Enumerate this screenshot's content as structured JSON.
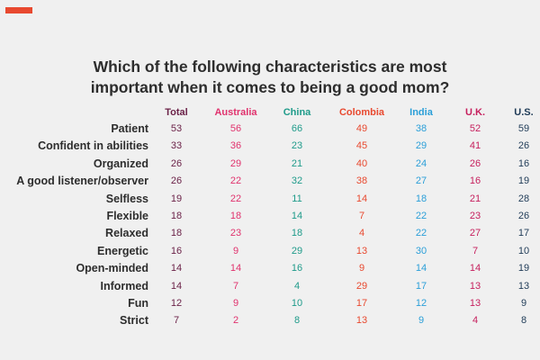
{
  "title_lines": [
    "Which of the following characteristics are most",
    "important when it comes to being a good mom?"
  ],
  "colors": {
    "accent": "#e8492f",
    "columns": [
      "#6b2248",
      "#e0326d",
      "#1f9b8a",
      "#e8492f",
      "#2b9fd8",
      "#c61f5d",
      "#1f3b57"
    ]
  },
  "chart_data": {
    "type": "table",
    "columns": [
      "Total",
      "Australia",
      "China",
      "Colombia",
      "India",
      "U.K.",
      "U.S."
    ],
    "rows": [
      {
        "label": "Patient",
        "values": [
          53,
          56,
          66,
          49,
          38,
          52,
          59
        ]
      },
      {
        "label": "Confident in abilities",
        "values": [
          33,
          36,
          23,
          45,
          29,
          41,
          26
        ]
      },
      {
        "label": "Organized",
        "values": [
          26,
          29,
          21,
          40,
          24,
          26,
          16
        ]
      },
      {
        "label": "A good listener/observer",
        "values": [
          26,
          22,
          32,
          38,
          27,
          16,
          19
        ]
      },
      {
        "label": "Selfless",
        "values": [
          19,
          22,
          11,
          14,
          18,
          21,
          28
        ]
      },
      {
        "label": "Flexible",
        "values": [
          18,
          18,
          14,
          7,
          22,
          23,
          26
        ]
      },
      {
        "label": "Relaxed",
        "values": [
          18,
          23,
          18,
          4,
          22,
          27,
          17
        ]
      },
      {
        "label": "Energetic",
        "values": [
          16,
          9,
          29,
          13,
          30,
          7,
          10
        ]
      },
      {
        "label": "Open-minded",
        "values": [
          14,
          14,
          16,
          9,
          14,
          14,
          19
        ]
      },
      {
        "label": "Informed",
        "values": [
          14,
          7,
          4,
          29,
          17,
          13,
          13
        ]
      },
      {
        "label": "Fun",
        "values": [
          12,
          9,
          10,
          17,
          12,
          13,
          9
        ]
      },
      {
        "label": "Strict",
        "values": [
          7,
          2,
          8,
          13,
          9,
          4,
          8
        ]
      }
    ]
  }
}
